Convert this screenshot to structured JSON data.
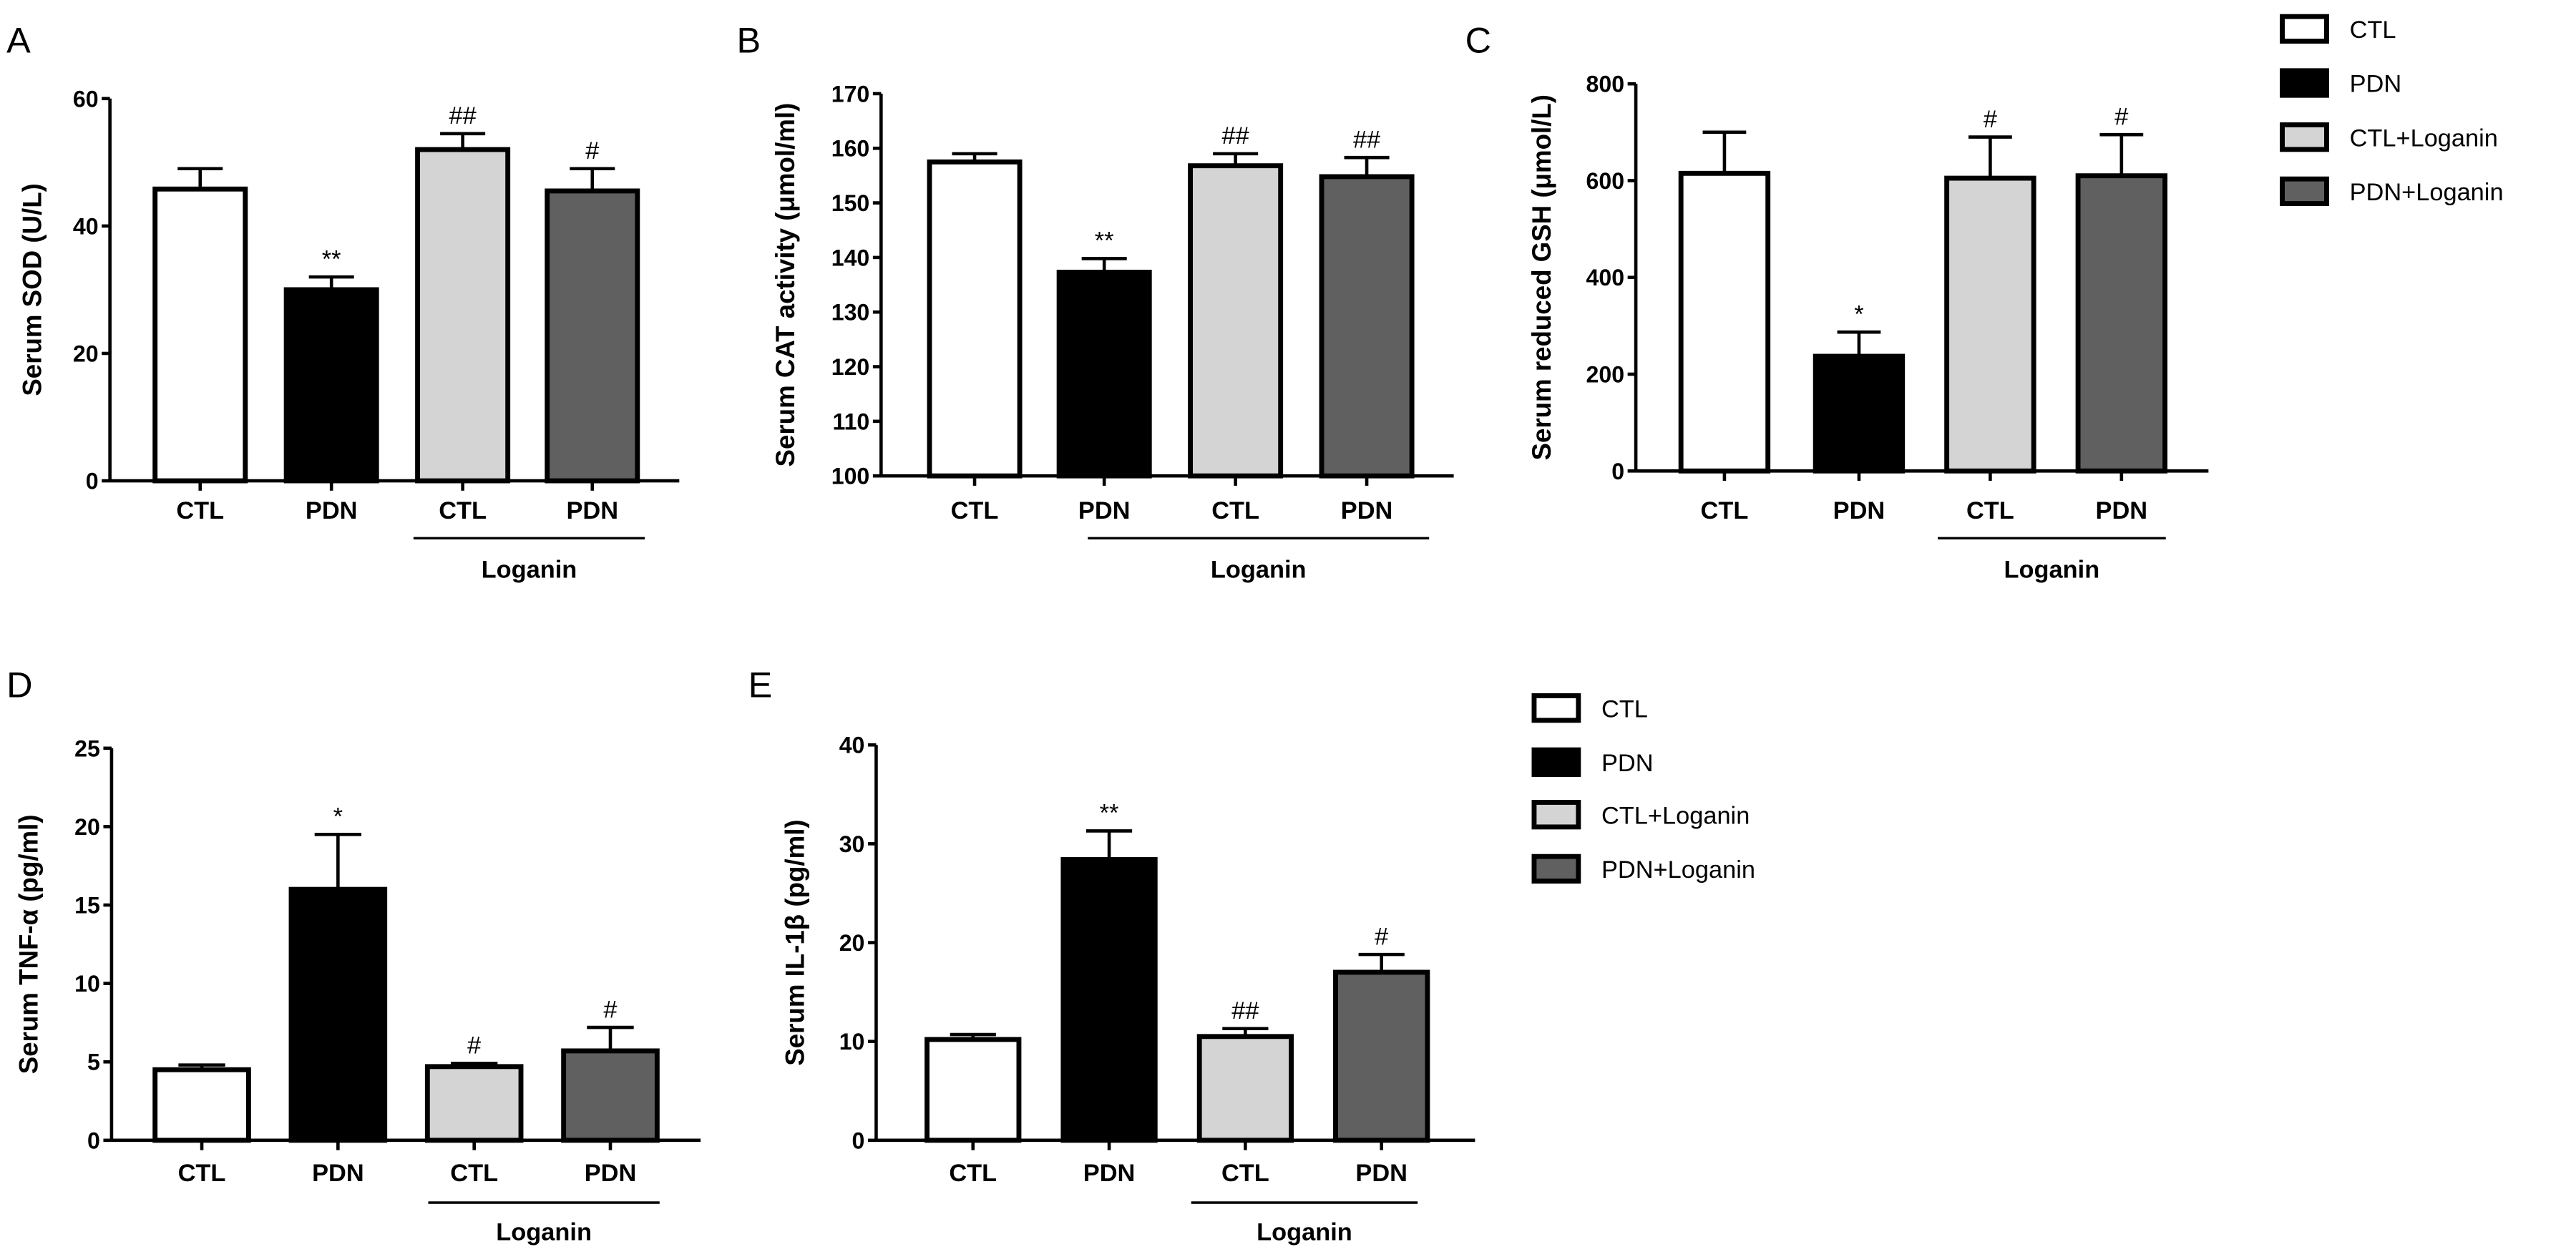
{
  "colors": {
    "CTL": "#ffffff",
    "PDN": "#000000",
    "CTL+Loganin": "#d4d4d4",
    "PDN+Loganin": "#606060",
    "stroke": "#000000"
  },
  "legends": [
    {
      "items": [
        "CTL",
        "PDN",
        "CTL+Loganin",
        "PDN+Loganin"
      ]
    },
    {
      "items": [
        "CTL",
        "PDN",
        "CTL+Loganin",
        "PDN+Loganin"
      ]
    }
  ],
  "chart_data": [
    {
      "panel": "A",
      "type": "bar",
      "ylabel": "Serum SOD (U/L)",
      "ylim": [
        0,
        60
      ],
      "yticks": [
        0,
        20,
        40,
        60
      ],
      "categories": [
        "CTL",
        "PDN",
        "CTL",
        "PDN"
      ],
      "group_label": "Loganin",
      "series": [
        "CTL",
        "PDN",
        "CTL+Loganin",
        "PDN+Loganin"
      ],
      "values": [
        45.8,
        30,
        52,
        45.5
      ],
      "error_upper": [
        49,
        32,
        54.5,
        49
      ],
      "annotations": [
        "",
        "**",
        "##",
        "#"
      ]
    },
    {
      "panel": "B",
      "type": "bar",
      "ylabel": "Serum CAT activity (μmol/ml)",
      "ylim": [
        100,
        170
      ],
      "yticks": [
        100,
        110,
        120,
        130,
        140,
        150,
        160,
        170
      ],
      "categories": [
        "CTL",
        "PDN",
        "CTL",
        "PDN"
      ],
      "group_label": "Loganin",
      "series": [
        "CTL",
        "PDN",
        "CTL+Loganin",
        "PDN+Loganin"
      ],
      "values": [
        157.5,
        137.3,
        156.8,
        154.8
      ],
      "error_upper": [
        159,
        139.8,
        159,
        158.3
      ],
      "annotations": [
        "",
        "**",
        "##",
        "##"
      ]
    },
    {
      "panel": "C",
      "type": "bar",
      "ylabel": "Serum reduced GSH (μmol/L)",
      "ylim": [
        0,
        800
      ],
      "yticks": [
        0,
        200,
        400,
        600,
        800
      ],
      "categories": [
        "CTL",
        "PDN",
        "CTL",
        "PDN"
      ],
      "group_label": "Loganin",
      "series": [
        "CTL",
        "PDN",
        "CTL+Loganin",
        "PDN+Loganin"
      ],
      "values": [
        615,
        237,
        605,
        610
      ],
      "error_upper": [
        700,
        287,
        690,
        695
      ],
      "annotations": [
        "",
        "*",
        "#",
        "#"
      ]
    },
    {
      "panel": "D",
      "type": "bar",
      "ylabel": "Serum TNF-α (pg/ml)",
      "ylim": [
        0,
        25
      ],
      "yticks": [
        0,
        5,
        10,
        15,
        20,
        25
      ],
      "categories": [
        "CTL",
        "PDN",
        "CTL",
        "PDN"
      ],
      "group_label": "Loganin",
      "series": [
        "CTL",
        "PDN",
        "CTL+Loganin",
        "PDN+Loganin"
      ],
      "values": [
        4.5,
        16,
        4.7,
        5.7
      ],
      "error_upper": [
        4.8,
        19.5,
        4.9,
        7.2
      ],
      "annotations": [
        "",
        "*",
        "#",
        "#"
      ]
    },
    {
      "panel": "E",
      "type": "bar",
      "ylabel": "Serum IL-1β (pg/ml)",
      "ylim": [
        0,
        40
      ],
      "yticks": [
        0,
        10,
        20,
        30,
        40
      ],
      "categories": [
        "CTL",
        "PDN",
        "CTL",
        "PDN"
      ],
      "group_label": "Loganin",
      "series": [
        "CTL",
        "PDN",
        "CTL+Loganin",
        "PDN+Loganin"
      ],
      "values": [
        10.2,
        28.4,
        10.5,
        17
      ],
      "error_upper": [
        10.7,
        31.3,
        11.3,
        18.8
      ],
      "annotations": [
        "",
        "**",
        "##",
        "#"
      ]
    }
  ]
}
